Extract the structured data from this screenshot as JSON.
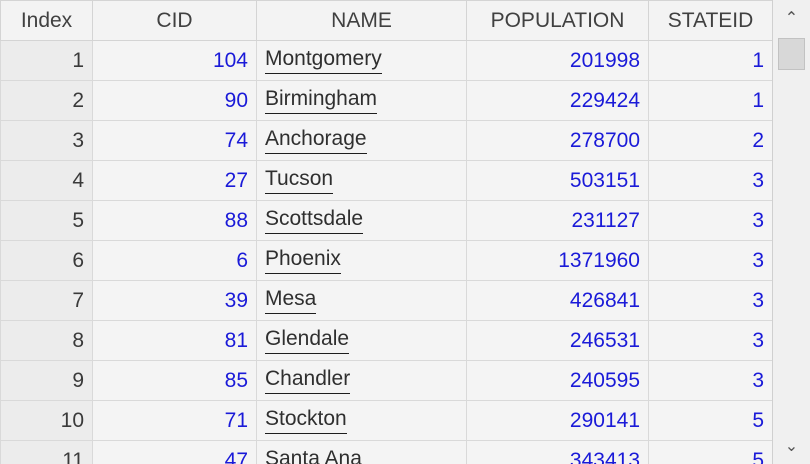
{
  "columns": {
    "index": "Index",
    "cid": "CID",
    "name": "NAME",
    "population": "POPULATION",
    "stateid": "STATEID"
  },
  "rows": [
    {
      "index": "1",
      "cid": "104",
      "name": "Montgomery",
      "population": "201998",
      "stateid": "1"
    },
    {
      "index": "2",
      "cid": "90",
      "name": "Birmingham",
      "population": "229424",
      "stateid": "1"
    },
    {
      "index": "3",
      "cid": "74",
      "name": "Anchorage",
      "population": "278700",
      "stateid": "2"
    },
    {
      "index": "4",
      "cid": "27",
      "name": "Tucson",
      "population": "503151",
      "stateid": "3"
    },
    {
      "index": "5",
      "cid": "88",
      "name": "Scottsdale",
      "population": "231127",
      "stateid": "3"
    },
    {
      "index": "6",
      "cid": "6",
      "name": "Phoenix",
      "population": "1371960",
      "stateid": "3"
    },
    {
      "index": "7",
      "cid": "39",
      "name": "Mesa",
      "population": "426841",
      "stateid": "3"
    },
    {
      "index": "8",
      "cid": "81",
      "name": "Glendale",
      "population": "246531",
      "stateid": "3"
    },
    {
      "index": "9",
      "cid": "85",
      "name": "Chandler",
      "population": "240595",
      "stateid": "3"
    },
    {
      "index": "10",
      "cid": "71",
      "name": "Stockton",
      "population": "290141",
      "stateid": "5"
    },
    {
      "index": "11",
      "cid": "47",
      "name": "Santa Ana",
      "population": "343413",
      "stateid": "5"
    }
  ],
  "scrollbar": {
    "up_icon": "chevron-up-icon",
    "down_icon": "chevron-down-icon"
  }
}
